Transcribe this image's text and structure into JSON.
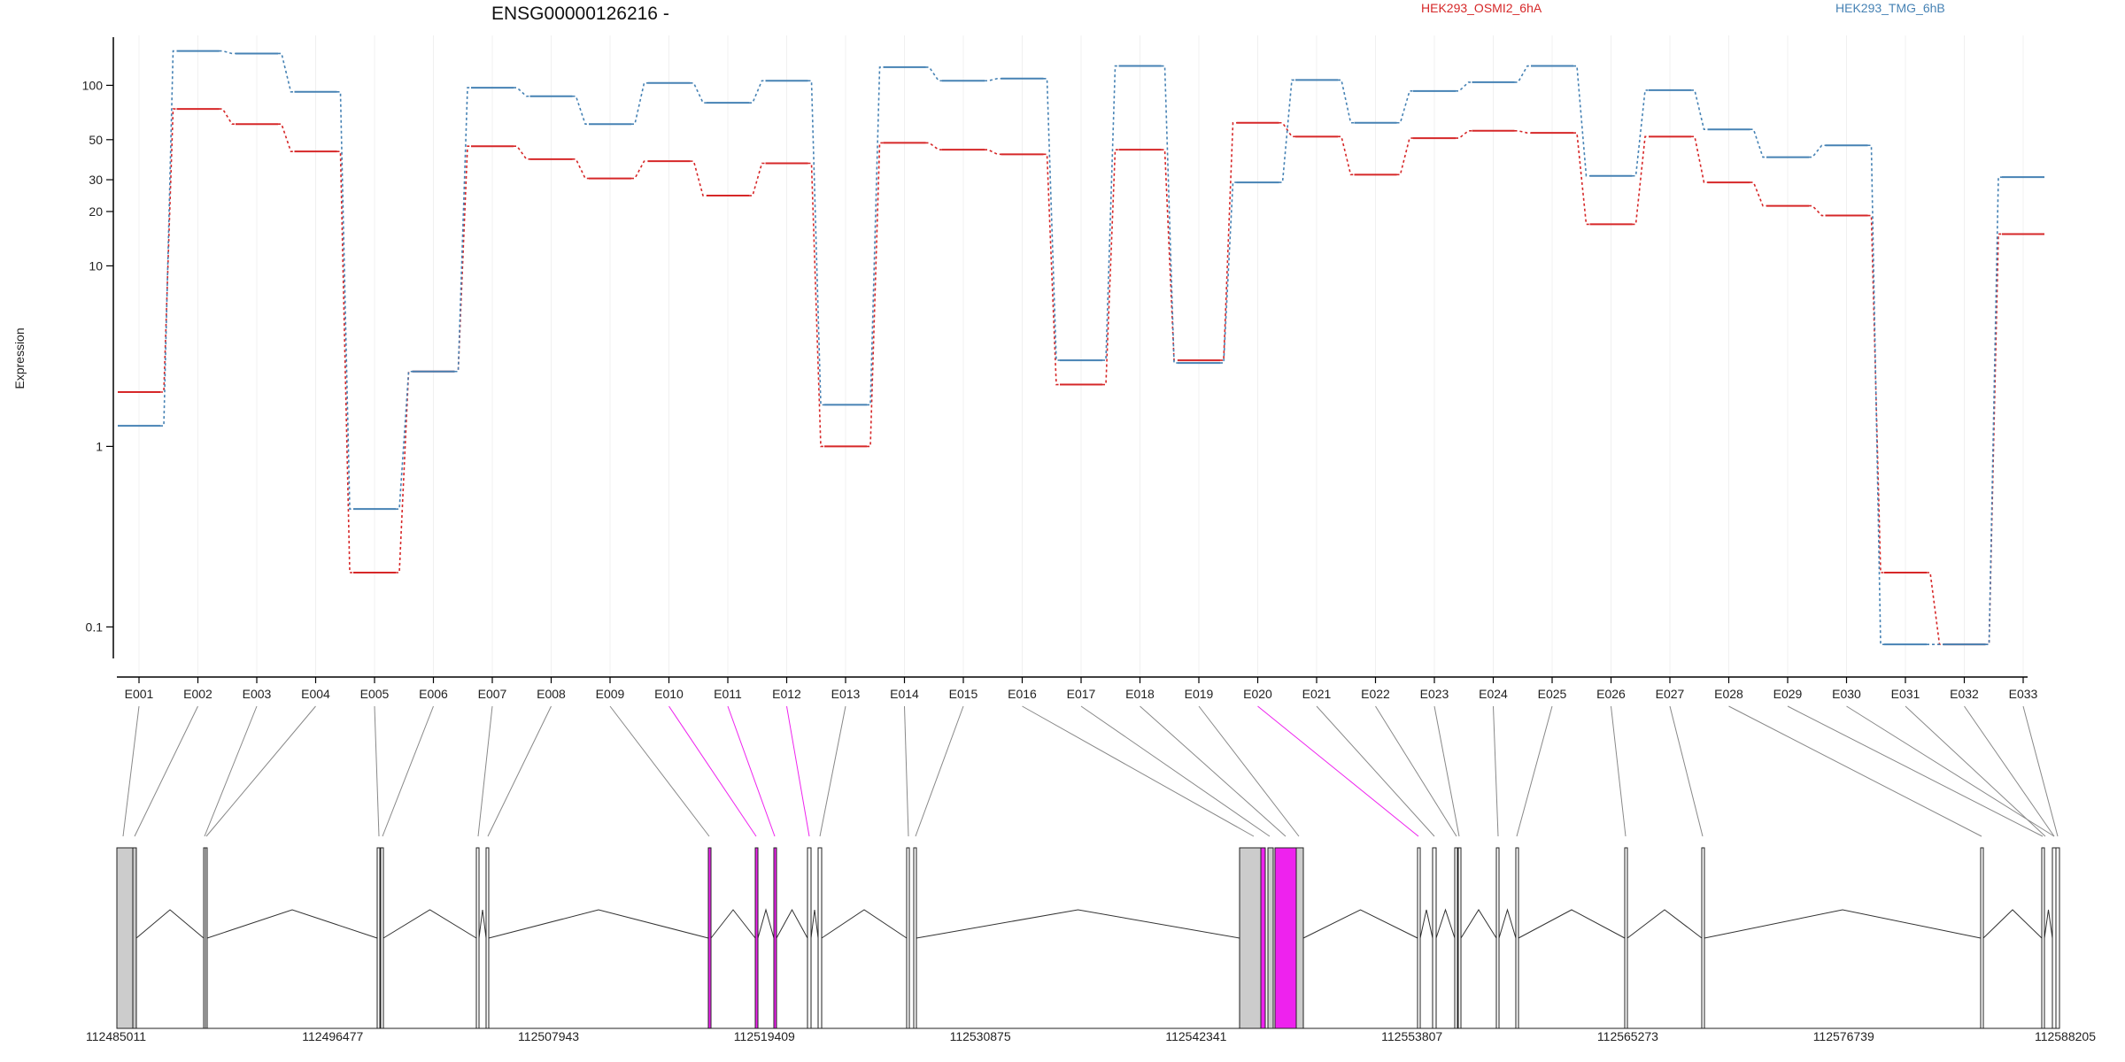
{
  "chart_data": {
    "type": "line",
    "title": "ENSG00000126216 -",
    "ylabel": "Expression",
    "yscale": "log",
    "ylim": [
      0.07,
      200
    ],
    "yticks": [
      "0.1",
      "1",
      "10",
      "20",
      "30",
      "50",
      "100"
    ],
    "grid": "vertical",
    "legend_position": "top-right",
    "categories": [
      "E001",
      "E002",
      "E003",
      "E004",
      "E005",
      "E006",
      "E007",
      "E008",
      "E009",
      "E010",
      "E011",
      "E012",
      "E013",
      "E014",
      "E015",
      "E016",
      "E017",
      "E018",
      "E019",
      "E020",
      "E021",
      "E022",
      "E023",
      "E024",
      "E025",
      "E026",
      "E027",
      "E028",
      "E029",
      "E030",
      "E031",
      "E032",
      "E033"
    ],
    "series": [
      {
        "name": "HEK293_OSMI2_6hA",
        "color": "#d62728",
        "values": [
          2.0,
          74,
          61,
          43,
          0.2,
          2.6,
          46,
          39,
          30.5,
          38,
          24.5,
          37,
          1.0,
          48,
          44,
          41.5,
          2.2,
          44,
          3.0,
          62,
          52,
          32,
          51,
          56,
          54.5,
          17,
          52,
          29,
          21.5,
          19,
          0.2,
          0.08,
          15
        ]
      },
      {
        "name": "HEK293_TMG_6hB",
        "color": "#4682b4",
        "values": [
          1.3,
          155,
          150,
          92,
          0.45,
          2.6,
          97,
          87,
          61,
          103,
          80,
          106,
          1.7,
          126,
          106,
          109,
          3.0,
          128,
          2.9,
          29,
          107,
          62,
          93,
          104,
          128,
          31.5,
          94,
          57,
          40,
          46.5,
          0.08,
          0.08,
          31
        ]
      }
    ],
    "exon_highlight": [
      "E010",
      "E011",
      "E012",
      "E020"
    ],
    "genomic_coordinates": [
      "112485011",
      "112496477",
      "112507943",
      "112519409",
      "112530875",
      "112542341",
      "112553807",
      "112565273",
      "112576739",
      "112588205"
    ],
    "colors": {
      "highlight": "#ee22ee",
      "link": "#888888",
      "exon_fill": "#cccccc"
    }
  }
}
